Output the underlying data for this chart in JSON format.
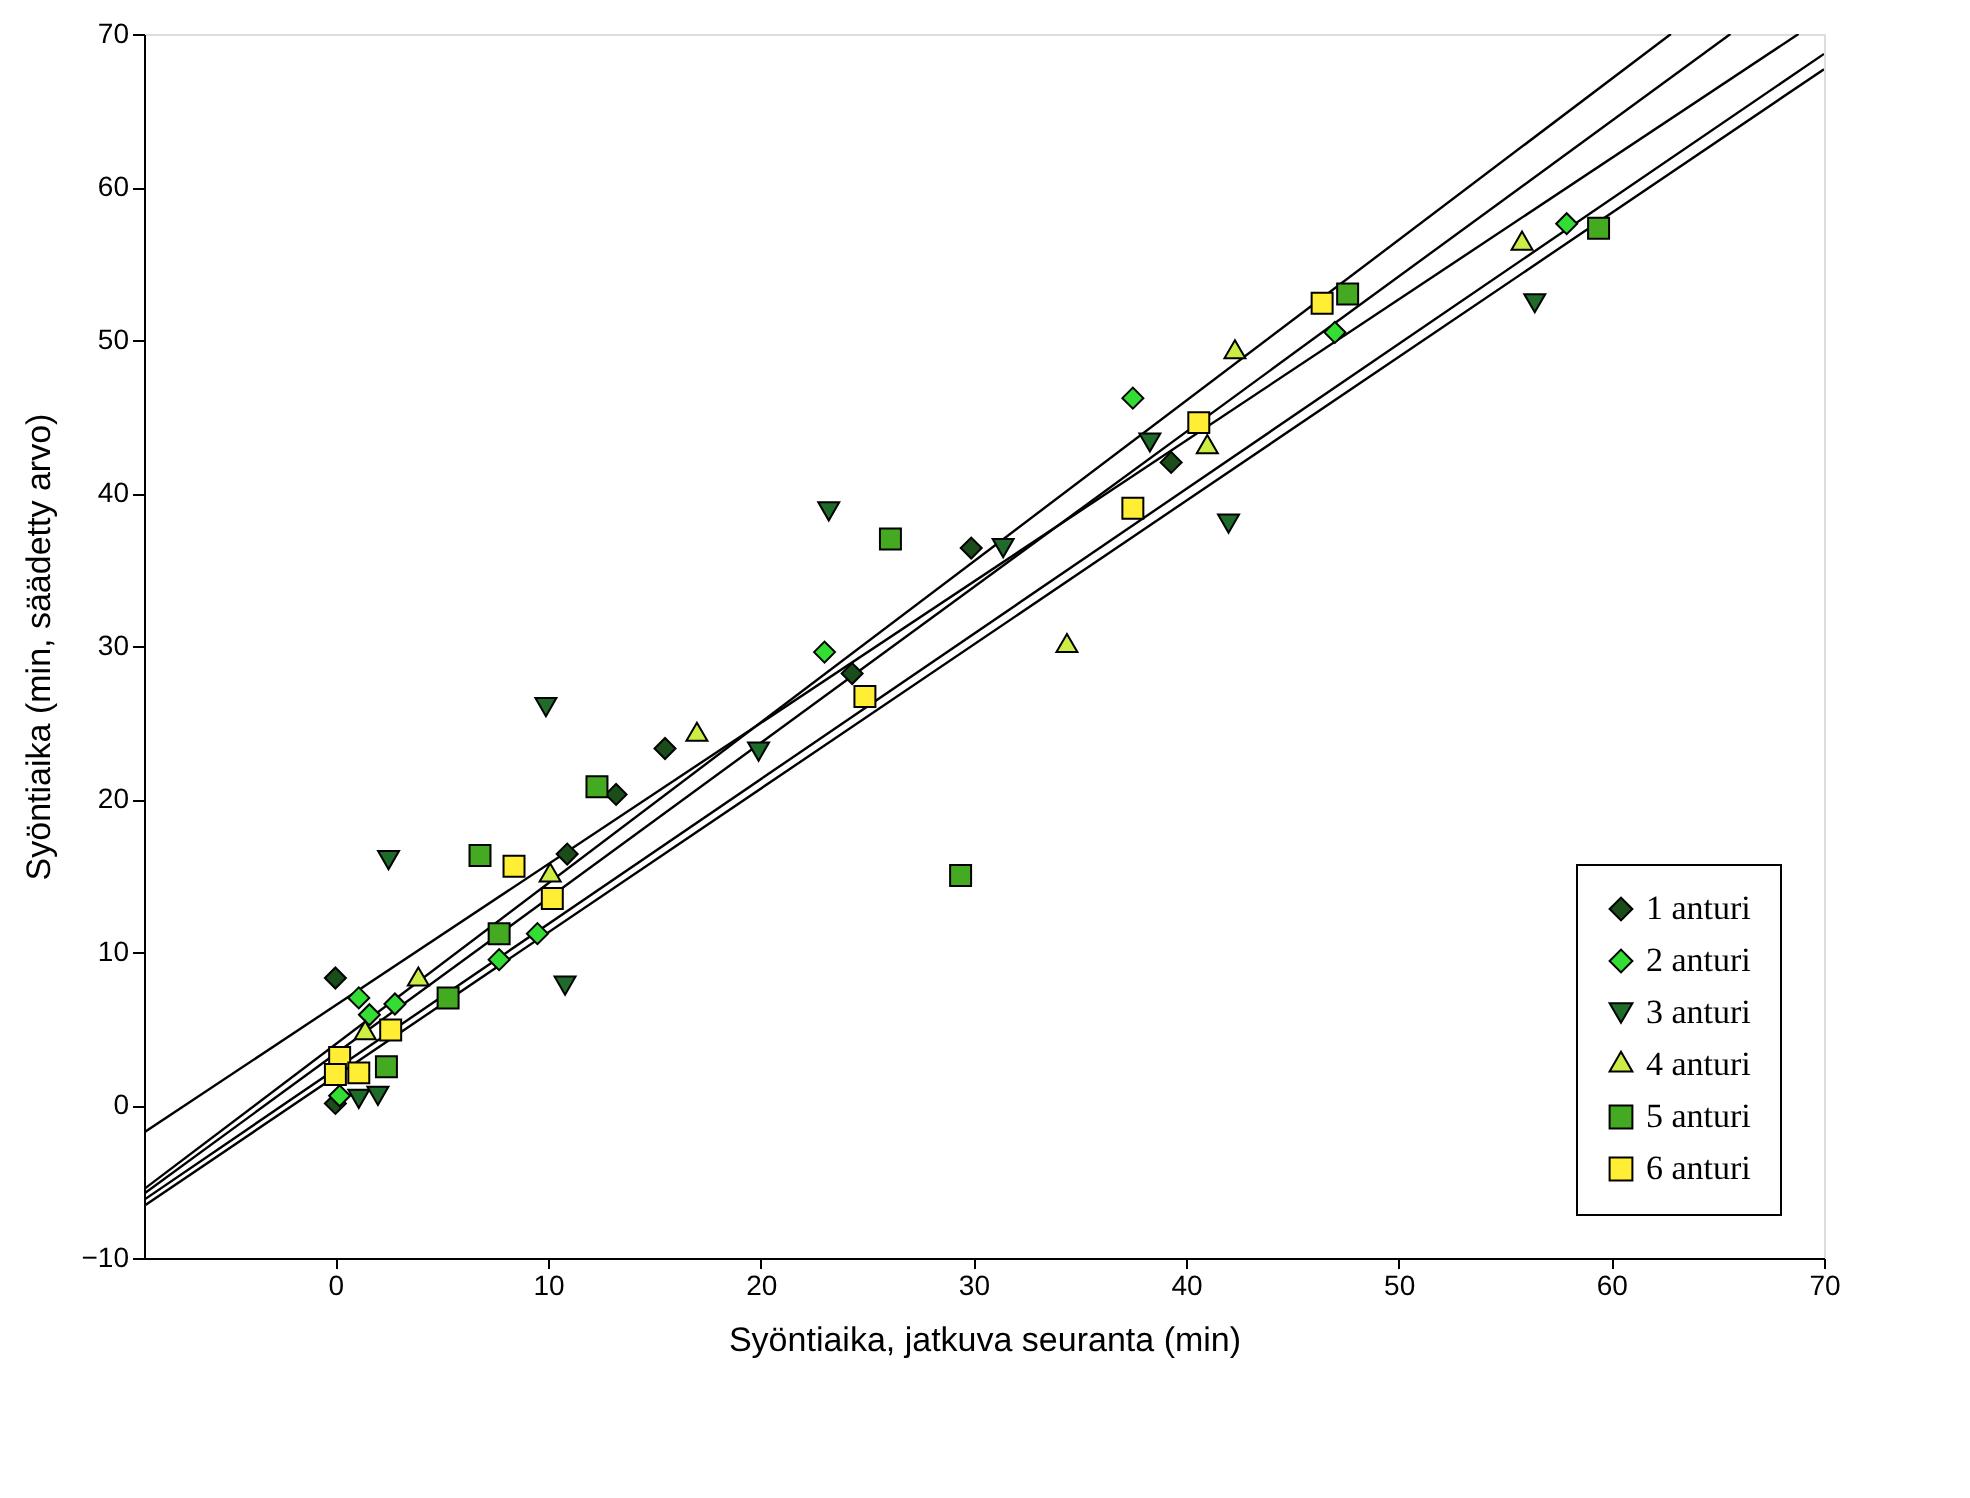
{
  "chart_data": {
    "type": "scatter",
    "xlabel": "Syöntiaika, jatkuva seuranta (min)",
    "ylabel": "Syöntiaika (min, säädetty arvo)",
    "xlim": [
      -9,
      70
    ],
    "ylim": [
      -10,
      70
    ],
    "xticks": [
      0,
      10,
      20,
      30,
      40,
      50,
      60,
      70
    ],
    "yticks": [
      -10,
      0,
      10,
      20,
      30,
      40,
      50,
      60,
      70
    ],
    "grid": false,
    "legend": "bottom right",
    "series": [
      {
        "name": "1 anturi",
        "color": "#1a4d1a",
        "marker": "diamond",
        "x": [
          0,
          0,
          10.9,
          13.2,
          15.5,
          24.3,
          29.9,
          39.3
        ],
        "values": [
          8.3,
          0.1,
          16.4,
          20.3,
          23.3,
          28.2,
          36.4,
          42
        ]
      },
      {
        "name": "2 anturi",
        "color": "#33dd33",
        "marker": "diamond",
        "x": [
          1.1,
          1.6,
          2.8,
          0.2,
          7.7,
          9.5,
          23,
          37.5,
          47,
          57.9
        ],
        "values": [
          7,
          5.9,
          6.6,
          0.6,
          9.5,
          11.2,
          29.6,
          46.2,
          50.5,
          57.6
        ]
      },
      {
        "name": "3 anturi",
        "color": "#1f6b2a",
        "marker": "triangle-down",
        "x": [
          2.5,
          9.9,
          10.8,
          1.1,
          2,
          23.2,
          31.4,
          19.9,
          38.3,
          56.4,
          42
        ],
        "values": [
          16,
          26,
          7.8,
          0.4,
          0.6,
          38.8,
          36.4,
          23.1,
          43.3,
          52.4,
          38
        ]
      },
      {
        "name": "4 anturi",
        "color": "#ccee44",
        "marker": "triangle",
        "x": [
          3.9,
          1.4,
          10.1,
          17,
          34.4,
          42.3,
          41,
          55.8
        ],
        "values": [
          8.2,
          4.7,
          15,
          24.2,
          30,
          49.2,
          43,
          56.3
        ]
      },
      {
        "name": "5 anturi",
        "color": "#44aa22",
        "marker": "square",
        "x": [
          6.8,
          12.3,
          7.7,
          5.3,
          2.4,
          26.1,
          29.4,
          47.6,
          59.4
        ],
        "values": [
          16.3,
          20.8,
          11.2,
          7,
          2.5,
          37,
          15,
          53,
          57.3
        ]
      },
      {
        "name": "6 anturi",
        "color": "#ffee33",
        "marker": "square",
        "x": [
          8.4,
          10.2,
          2.6,
          0.2,
          1.1,
          0,
          24.9,
          37.5,
          40.6,
          46.4
        ],
        "values": [
          15.6,
          13.5,
          4.9,
          3.1,
          2.1,
          2,
          26.7,
          39,
          44.6,
          52.4
        ]
      },
      {
        "type": "line",
        "color": "#000000",
        "x": [
          -9,
          68.8
        ],
        "values": [
          -1.8,
          70
        ]
      },
      {
        "type": "line",
        "color": "#000000",
        "x": [
          -9,
          62.8
        ],
        "values": [
          -5.5,
          70
        ]
      },
      {
        "type": "line",
        "color": "#000000",
        "x": [
          -9,
          65.6
        ],
        "values": [
          -5.8,
          70
        ]
      },
      {
        "type": "line",
        "color": "#000000",
        "x": [
          -9,
          70
        ],
        "values": [
          -6.2,
          68.7
        ]
      },
      {
        "type": "line",
        "color": "#000000",
        "x": [
          -9,
          70
        ],
        "values": [
          -6.6,
          67.7
        ]
      }
    ]
  }
}
